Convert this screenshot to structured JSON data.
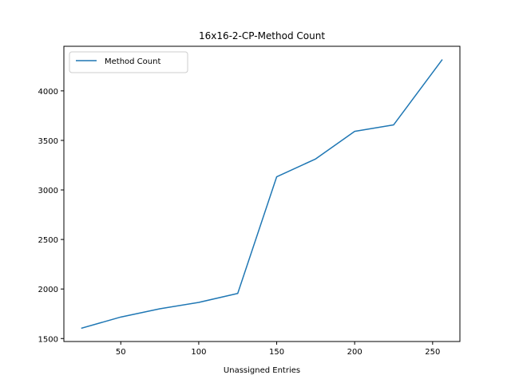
{
  "chart_data": {
    "type": "line",
    "title": "16x16-2-CP-Method Count",
    "xlabel": "Unassigned Entries",
    "ylabel": "",
    "xlim": [
      13.5,
      267.5
    ],
    "ylim": [
      1470,
      4450
    ],
    "xticks": [
      50,
      100,
      150,
      200,
      250
    ],
    "yticks": [
      1500,
      2000,
      2500,
      3000,
      3500,
      4000
    ],
    "grid": false,
    "legend_position": "top-left",
    "series": [
      {
        "name": "Method Count",
        "color": "#1f77b4",
        "x": [
          25,
          50,
          75,
          100,
          125,
          150,
          175,
          200,
          225,
          256
        ],
        "y": [
          1605,
          1717,
          1800,
          1865,
          1955,
          3133,
          3313,
          3591,
          3657,
          4312
        ]
      }
    ]
  }
}
